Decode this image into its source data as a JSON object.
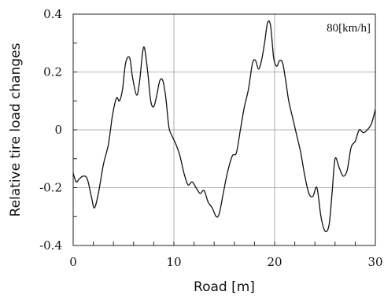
{
  "chart_data": {
    "type": "line",
    "title": "",
    "xlabel": "Road [m]",
    "ylabel": "Relative tire load changes",
    "annotation": "80[km/h]",
    "xlim": [
      0,
      30
    ],
    "ylim": [
      -0.4,
      0.4
    ],
    "x_ticks": [
      0,
      10,
      20,
      30
    ],
    "x_tick_labels": [
      "0",
      "10",
      "20",
      "30"
    ],
    "y_ticks": [
      -0.4,
      -0.2,
      0,
      0.2,
      0.4
    ],
    "y_tick_labels": [
      "-0.4",
      "-0.2",
      "0",
      "0.2",
      "0.4"
    ],
    "grid": true,
    "series": [
      {
        "x": [
          0,
          0.3,
          0.6,
          1.0,
          1.4,
          1.8,
          2.1,
          2.5,
          3.0,
          3.5,
          3.9,
          4.3,
          4.6,
          4.9,
          5.2,
          5.6,
          5.9,
          6.3,
          6.6,
          6.9,
          7.1,
          7.4,
          7.7,
          8.0,
          8.3,
          8.6,
          8.9,
          9.2,
          9.5,
          9.8,
          10.2,
          10.6,
          11.0,
          11.4,
          11.8,
          12.2,
          12.6,
          13.0,
          13.4,
          13.8,
          14.2,
          14.5,
          14.9,
          15.3,
          15.8,
          16.2,
          16.6,
          17.0,
          17.4,
          17.8,
          18.1,
          18.4,
          18.7,
          19.0,
          19.3,
          19.6,
          19.9,
          20.2,
          20.5,
          20.8,
          21.1,
          21.4,
          21.8,
          22.2,
          22.6,
          23.0,
          23.4,
          23.8,
          24.2,
          24.6,
          25.0,
          25.4,
          25.7,
          26.0,
          26.4,
          26.8,
          27.2,
          27.6,
          28.0,
          28.4,
          28.8,
          29.2,
          29.6,
          30.0
        ],
        "y": [
          -0.15,
          -0.18,
          -0.17,
          -0.16,
          -0.17,
          -0.23,
          -0.27,
          -0.22,
          -0.12,
          -0.05,
          0.05,
          0.11,
          0.1,
          0.14,
          0.23,
          0.25,
          0.18,
          0.12,
          0.17,
          0.27,
          0.28,
          0.2,
          0.1,
          0.08,
          0.12,
          0.17,
          0.17,
          0.11,
          0.01,
          -0.02,
          -0.05,
          -0.09,
          -0.15,
          -0.19,
          -0.18,
          -0.2,
          -0.22,
          -0.21,
          -0.25,
          -0.27,
          -0.3,
          -0.29,
          -0.22,
          -0.15,
          -0.09,
          -0.08,
          0.0,
          0.08,
          0.14,
          0.23,
          0.24,
          0.21,
          0.24,
          0.3,
          0.37,
          0.36,
          0.25,
          0.22,
          0.24,
          0.23,
          0.17,
          0.1,
          0.04,
          -0.02,
          -0.08,
          -0.16,
          -0.22,
          -0.23,
          -0.2,
          -0.3,
          -0.35,
          -0.33,
          -0.22,
          -0.1,
          -0.13,
          -0.16,
          -0.14,
          -0.06,
          -0.04,
          0.0,
          -0.01,
          0.0,
          0.02,
          0.07
        ]
      }
    ]
  }
}
